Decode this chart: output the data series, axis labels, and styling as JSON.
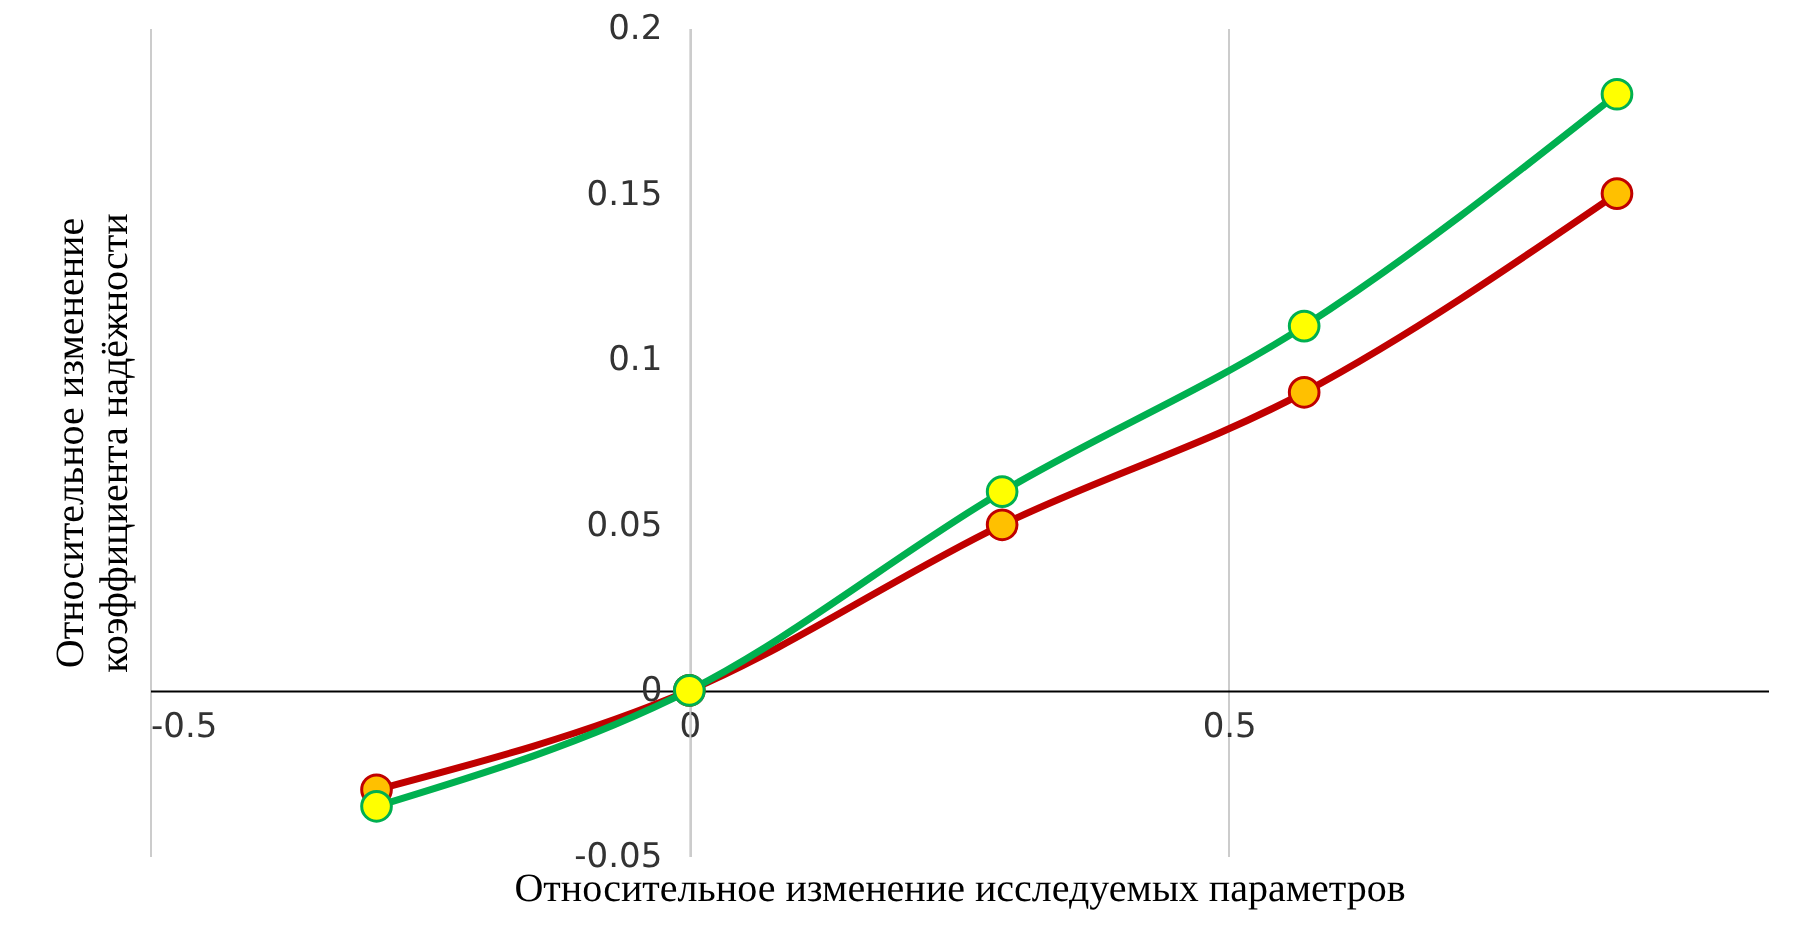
{
  "chart_data": {
    "type": "line",
    "xlabel": "Относительное изменение исследуемых параметров",
    "ylabel": "Относительное изменение коэффициента надёжности",
    "x": [
      -0.29,
      0,
      0.29,
      0.57,
      0.86
    ],
    "series": [
      {
        "color": "#c00000",
        "colors": [
          "#ffc000",
          "#ffc000",
          "#ffc000",
          "#ffc000",
          "#ffc000"
        ],
        "values": [
          -0.03,
          0,
          0.05,
          0.09,
          0.15
        ]
      },
      {
        "color": "#00b050",
        "colors": [
          "#ffff00",
          "#ffff00",
          "#ffff00",
          "#ffff00",
          "#ffff00"
        ],
        "values": [
          -0.035,
          0,
          0.06,
          0.11,
          0.18
        ]
      }
    ],
    "xlim": [
      -0.5,
      1.0
    ],
    "xticks": [
      -0.5,
      0,
      0.5
    ],
    "ylim": [
      -0.05,
      0.2
    ],
    "yticks": [
      -0.05,
      0,
      0.05,
      0.1,
      0.15,
      0.2
    ],
    "grid": "x",
    "marker": "circle",
    "line_style": "solid"
  }
}
